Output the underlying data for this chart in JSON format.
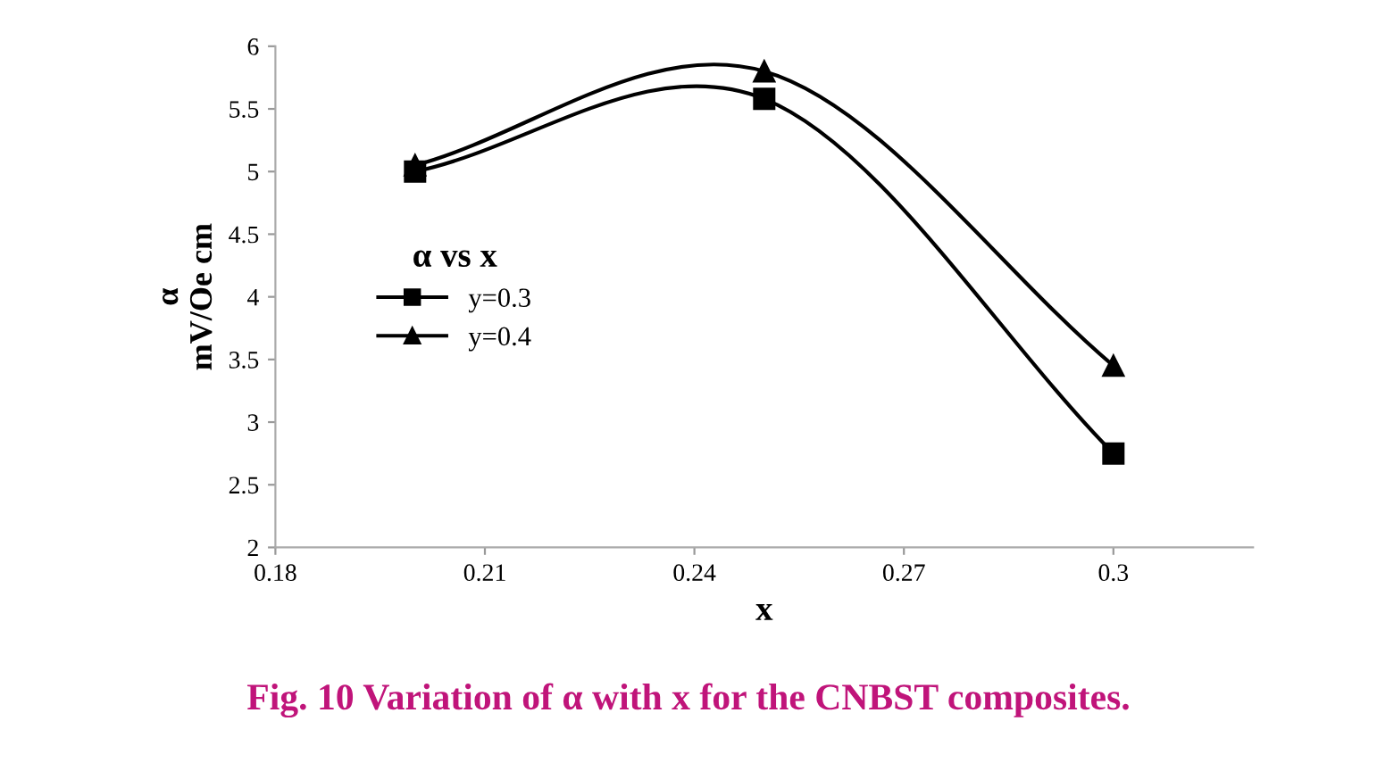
{
  "chart_data": {
    "type": "line",
    "xlabel": "x",
    "ylabel": "α\nmV/Oe cm",
    "legend_title": "α vs x",
    "x": [
      0.2,
      0.25,
      0.3
    ],
    "series": [
      {
        "name": "y=0.3",
        "color": "#000000",
        "marker": "square",
        "values": [
          5.0,
          5.58,
          2.75
        ]
      },
      {
        "name": "y=0.4",
        "color": "#000000",
        "marker": "triangle",
        "values": [
          5.05,
          5.8,
          3.45
        ]
      }
    ],
    "xlim": [
      0.18,
      0.32
    ],
    "xticks": [
      0.18,
      0.21,
      0.24,
      0.27,
      0.3
    ],
    "ylim": [
      2,
      6
    ],
    "yticks": [
      2,
      2.5,
      3,
      3.5,
      4,
      4.5,
      5,
      5.5,
      6
    ],
    "grid": false,
    "legend": "left",
    "line_style": "solid",
    "annotations": [
      "Fig. 10 Variation of α with x for the CNBST composites."
    ]
  }
}
